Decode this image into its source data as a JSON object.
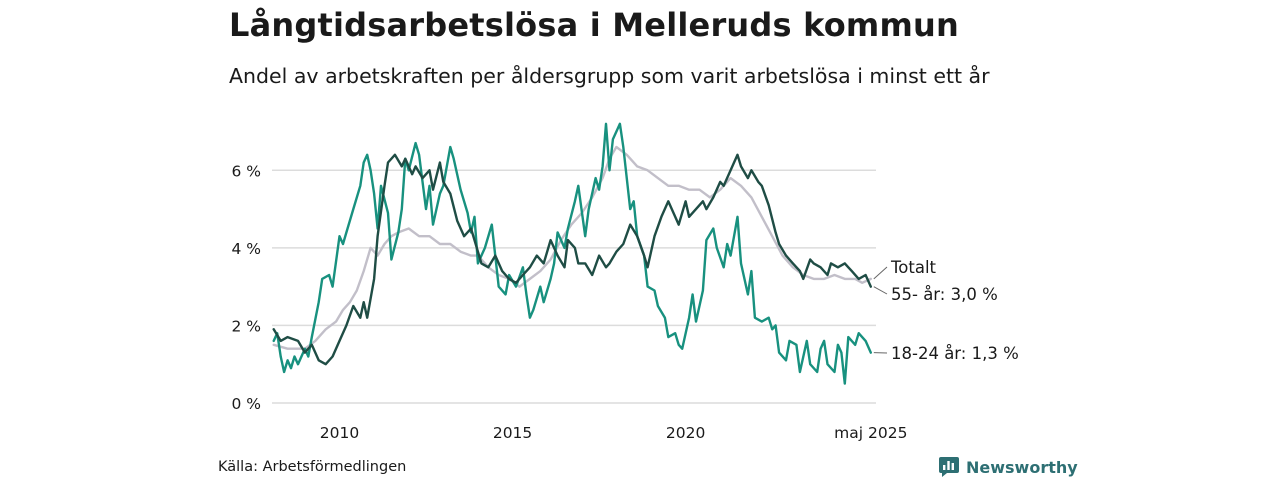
{
  "header": {
    "title": "Långtidsarbetslösa i Melleruds kommun",
    "subtitle": "Andel av arbetskraften per åldersgrupp som varit arbetslösa i minst ett år"
  },
  "footer": {
    "source": "Källa: Arbetsförmedlingen",
    "brand": "Newsworthy"
  },
  "colors": {
    "total": "#c2bfc9",
    "age55": "#1f4d45",
    "age1824": "#18917f",
    "grid": "#dcdcdc",
    "brand": "#2d6f73"
  },
  "chart_data": {
    "type": "line",
    "title": "Långtidsarbetslösa i Melleruds kommun",
    "subtitle": "Andel av arbetskraften per åldersgrupp som varit arbetslösa i minst ett år",
    "xlim": [
      2008.05,
      2025.5
    ],
    "ylim": [
      0,
      7.4
    ],
    "x_ticks": [
      2010,
      2015,
      2020,
      2025.35
    ],
    "x_tick_labels": [
      "2010",
      "2015",
      "2020",
      "maj 2025"
    ],
    "y_ticks": [
      0,
      2,
      4,
      6
    ],
    "y_tick_labels": [
      "0 %",
      "2 %",
      "4 %",
      "6 %"
    ],
    "grid": "horizontal",
    "end_labels": {
      "total": "Totalt",
      "age55": "55- år: 3,0 %",
      "age1824": "18-24 år: 1,3 %"
    },
    "series": [
      {
        "key": "total",
        "name": "Totalt",
        "points": [
          [
            2008.1,
            1.5
          ],
          [
            2008.5,
            1.4
          ],
          [
            2009.0,
            1.4
          ],
          [
            2009.3,
            1.6
          ],
          [
            2009.6,
            1.9
          ],
          [
            2009.9,
            2.1
          ],
          [
            2010.1,
            2.4
          ],
          [
            2010.3,
            2.6
          ],
          [
            2010.5,
            2.9
          ],
          [
            2010.7,
            3.4
          ],
          [
            2010.9,
            4.0
          ],
          [
            2011.1,
            3.8
          ],
          [
            2011.3,
            4.1
          ],
          [
            2011.5,
            4.3
          ],
          [
            2011.7,
            4.4
          ],
          [
            2012.0,
            4.5
          ],
          [
            2012.3,
            4.3
          ],
          [
            2012.6,
            4.3
          ],
          [
            2012.9,
            4.1
          ],
          [
            2013.2,
            4.1
          ],
          [
            2013.5,
            3.9
          ],
          [
            2013.8,
            3.8
          ],
          [
            2014.0,
            3.8
          ],
          [
            2014.3,
            3.5
          ],
          [
            2014.6,
            3.3
          ],
          [
            2014.9,
            3.2
          ],
          [
            2015.2,
            3.0
          ],
          [
            2015.5,
            3.2
          ],
          [
            2015.8,
            3.4
          ],
          [
            2016.1,
            3.7
          ],
          [
            2016.4,
            4.2
          ],
          [
            2016.7,
            4.6
          ],
          [
            2017.0,
            4.9
          ],
          [
            2017.3,
            5.3
          ],
          [
            2017.6,
            5.8
          ],
          [
            2017.8,
            6.3
          ],
          [
            2018.0,
            6.6
          ],
          [
            2018.3,
            6.4
          ],
          [
            2018.6,
            6.1
          ],
          [
            2018.9,
            6.0
          ],
          [
            2019.2,
            5.8
          ],
          [
            2019.5,
            5.6
          ],
          [
            2019.8,
            5.6
          ],
          [
            2020.1,
            5.5
          ],
          [
            2020.4,
            5.5
          ],
          [
            2020.7,
            5.3
          ],
          [
            2021.0,
            5.5
          ],
          [
            2021.3,
            5.8
          ],
          [
            2021.6,
            5.6
          ],
          [
            2021.9,
            5.3
          ],
          [
            2022.2,
            4.8
          ],
          [
            2022.5,
            4.3
          ],
          [
            2022.8,
            3.8
          ],
          [
            2023.1,
            3.5
          ],
          [
            2023.4,
            3.3
          ],
          [
            2023.7,
            3.2
          ],
          [
            2024.0,
            3.2
          ],
          [
            2024.3,
            3.3
          ],
          [
            2024.6,
            3.2
          ],
          [
            2024.9,
            3.2
          ],
          [
            2025.1,
            3.1
          ],
          [
            2025.35,
            3.2
          ]
        ]
      },
      {
        "key": "age55",
        "name": "55- år",
        "points": [
          [
            2008.1,
            1.9
          ],
          [
            2008.3,
            1.6
          ],
          [
            2008.5,
            1.7
          ],
          [
            2008.8,
            1.6
          ],
          [
            2009.0,
            1.3
          ],
          [
            2009.2,
            1.5
          ],
          [
            2009.4,
            1.1
          ],
          [
            2009.6,
            1.0
          ],
          [
            2009.8,
            1.2
          ],
          [
            2010.0,
            1.6
          ],
          [
            2010.2,
            2.0
          ],
          [
            2010.4,
            2.5
          ],
          [
            2010.6,
            2.2
          ],
          [
            2010.7,
            2.6
          ],
          [
            2010.8,
            2.2
          ],
          [
            2011.0,
            3.2
          ],
          [
            2011.1,
            4.3
          ],
          [
            2011.3,
            5.6
          ],
          [
            2011.4,
            6.2
          ],
          [
            2011.6,
            6.4
          ],
          [
            2011.8,
            6.1
          ],
          [
            2011.9,
            6.3
          ],
          [
            2012.1,
            5.9
          ],
          [
            2012.2,
            6.1
          ],
          [
            2012.4,
            5.8
          ],
          [
            2012.6,
            6.0
          ],
          [
            2012.7,
            5.5
          ],
          [
            2012.9,
            6.2
          ],
          [
            2013.0,
            5.7
          ],
          [
            2013.2,
            5.4
          ],
          [
            2013.4,
            4.7
          ],
          [
            2013.6,
            4.3
          ],
          [
            2013.8,
            4.5
          ],
          [
            2013.9,
            4.2
          ],
          [
            2014.1,
            3.6
          ],
          [
            2014.3,
            3.5
          ],
          [
            2014.5,
            3.8
          ],
          [
            2014.7,
            3.4
          ],
          [
            2014.9,
            3.2
          ],
          [
            2015.1,
            3.1
          ],
          [
            2015.3,
            3.3
          ],
          [
            2015.5,
            3.5
          ],
          [
            2015.7,
            3.8
          ],
          [
            2015.9,
            3.6
          ],
          [
            2016.1,
            4.2
          ],
          [
            2016.3,
            3.8
          ],
          [
            2016.5,
            3.5
          ],
          [
            2016.6,
            4.2
          ],
          [
            2016.8,
            4.0
          ],
          [
            2016.9,
            3.6
          ],
          [
            2017.1,
            3.6
          ],
          [
            2017.3,
            3.3
          ],
          [
            2017.5,
            3.8
          ],
          [
            2017.7,
            3.5
          ],
          [
            2017.8,
            3.6
          ],
          [
            2018.0,
            3.9
          ],
          [
            2018.2,
            4.1
          ],
          [
            2018.4,
            4.6
          ],
          [
            2018.6,
            4.3
          ],
          [
            2018.8,
            3.8
          ],
          [
            2018.9,
            3.5
          ],
          [
            2019.1,
            4.3
          ],
          [
            2019.3,
            4.8
          ],
          [
            2019.5,
            5.2
          ],
          [
            2019.6,
            5.0
          ],
          [
            2019.8,
            4.6
          ],
          [
            2020.0,
            5.2
          ],
          [
            2020.1,
            4.8
          ],
          [
            2020.3,
            5.0
          ],
          [
            2020.5,
            5.2
          ],
          [
            2020.6,
            5.0
          ],
          [
            2020.8,
            5.3
          ],
          [
            2021.0,
            5.7
          ],
          [
            2021.1,
            5.6
          ],
          [
            2021.3,
            6.0
          ],
          [
            2021.5,
            6.4
          ],
          [
            2021.6,
            6.1
          ],
          [
            2021.8,
            5.8
          ],
          [
            2021.9,
            6.0
          ],
          [
            2022.1,
            5.7
          ],
          [
            2022.2,
            5.6
          ],
          [
            2022.4,
            5.1
          ],
          [
            2022.6,
            4.4
          ],
          [
            2022.7,
            4.1
          ],
          [
            2022.9,
            3.8
          ],
          [
            2023.1,
            3.6
          ],
          [
            2023.3,
            3.4
          ],
          [
            2023.4,
            3.2
          ],
          [
            2023.6,
            3.7
          ],
          [
            2023.7,
            3.6
          ],
          [
            2023.9,
            3.5
          ],
          [
            2024.1,
            3.3
          ],
          [
            2024.2,
            3.6
          ],
          [
            2024.4,
            3.5
          ],
          [
            2024.6,
            3.6
          ],
          [
            2024.7,
            3.5
          ],
          [
            2024.8,
            3.4
          ],
          [
            2025.0,
            3.2
          ],
          [
            2025.2,
            3.3
          ],
          [
            2025.35,
            3.0
          ]
        ]
      },
      {
        "key": "age1824",
        "name": "18-24 år",
        "points": [
          [
            2008.1,
            1.6
          ],
          [
            2008.2,
            1.8
          ],
          [
            2008.3,
            1.2
          ],
          [
            2008.4,
            0.8
          ],
          [
            2008.5,
            1.1
          ],
          [
            2008.6,
            0.9
          ],
          [
            2008.7,
            1.2
          ],
          [
            2008.8,
            1.0
          ],
          [
            2009.0,
            1.4
          ],
          [
            2009.1,
            1.2
          ],
          [
            2009.2,
            1.7
          ],
          [
            2009.4,
            2.6
          ],
          [
            2009.5,
            3.2
          ],
          [
            2009.7,
            3.3
          ],
          [
            2009.8,
            3.0
          ],
          [
            2010.0,
            4.3
          ],
          [
            2010.1,
            4.1
          ],
          [
            2010.2,
            4.4
          ],
          [
            2010.4,
            5.0
          ],
          [
            2010.6,
            5.6
          ],
          [
            2010.7,
            6.2
          ],
          [
            2010.8,
            6.4
          ],
          [
            2010.9,
            6.0
          ],
          [
            2011.0,
            5.4
          ],
          [
            2011.1,
            4.5
          ],
          [
            2011.2,
            5.6
          ],
          [
            2011.4,
            4.9
          ],
          [
            2011.5,
            3.7
          ],
          [
            2011.7,
            4.4
          ],
          [
            2011.8,
            5.0
          ],
          [
            2011.9,
            6.3
          ],
          [
            2012.0,
            6.0
          ],
          [
            2012.2,
            6.7
          ],
          [
            2012.3,
            6.4
          ],
          [
            2012.5,
            5.0
          ],
          [
            2012.6,
            5.6
          ],
          [
            2012.7,
            4.6
          ],
          [
            2012.9,
            5.4
          ],
          [
            2013.0,
            5.6
          ],
          [
            2013.2,
            6.6
          ],
          [
            2013.3,
            6.3
          ],
          [
            2013.5,
            5.5
          ],
          [
            2013.7,
            4.9
          ],
          [
            2013.8,
            4.4
          ],
          [
            2013.9,
            4.8
          ],
          [
            2014.0,
            3.6
          ],
          [
            2014.2,
            4.0
          ],
          [
            2014.4,
            4.6
          ],
          [
            2014.6,
            3.0
          ],
          [
            2014.8,
            2.8
          ],
          [
            2014.9,
            3.3
          ],
          [
            2015.1,
            3.0
          ],
          [
            2015.3,
            3.5
          ],
          [
            2015.4,
            2.8
          ],
          [
            2015.5,
            2.2
          ],
          [
            2015.6,
            2.4
          ],
          [
            2015.8,
            3.0
          ],
          [
            2015.9,
            2.6
          ],
          [
            2016.1,
            3.2
          ],
          [
            2016.2,
            3.6
          ],
          [
            2016.3,
            4.4
          ],
          [
            2016.5,
            4.0
          ],
          [
            2016.6,
            4.5
          ],
          [
            2016.8,
            5.2
          ],
          [
            2016.9,
            5.6
          ],
          [
            2017.1,
            4.3
          ],
          [
            2017.2,
            5.0
          ],
          [
            2017.4,
            5.8
          ],
          [
            2017.5,
            5.5
          ],
          [
            2017.6,
            6.1
          ],
          [
            2017.7,
            7.2
          ],
          [
            2017.8,
            6.0
          ],
          [
            2017.9,
            6.8
          ],
          [
            2018.1,
            7.2
          ],
          [
            2018.2,
            6.6
          ],
          [
            2018.4,
            5.0
          ],
          [
            2018.5,
            5.2
          ],
          [
            2018.6,
            4.3
          ],
          [
            2018.8,
            3.8
          ],
          [
            2018.9,
            3.0
          ],
          [
            2019.1,
            2.9
          ],
          [
            2019.2,
            2.5
          ],
          [
            2019.4,
            2.2
          ],
          [
            2019.5,
            1.7
          ],
          [
            2019.7,
            1.8
          ],
          [
            2019.8,
            1.5
          ],
          [
            2019.9,
            1.4
          ],
          [
            2020.1,
            2.2
          ],
          [
            2020.2,
            2.8
          ],
          [
            2020.3,
            2.1
          ],
          [
            2020.5,
            2.9
          ],
          [
            2020.6,
            4.2
          ],
          [
            2020.8,
            4.5
          ],
          [
            2020.9,
            4.0
          ],
          [
            2021.1,
            3.5
          ],
          [
            2021.2,
            4.1
          ],
          [
            2021.3,
            3.8
          ],
          [
            2021.5,
            4.8
          ],
          [
            2021.6,
            3.6
          ],
          [
            2021.8,
            2.8
          ],
          [
            2021.9,
            3.4
          ],
          [
            2022.0,
            2.2
          ],
          [
            2022.2,
            2.1
          ],
          [
            2022.4,
            2.2
          ],
          [
            2022.5,
            1.9
          ],
          [
            2022.6,
            2.0
          ],
          [
            2022.7,
            1.3
          ],
          [
            2022.9,
            1.1
          ],
          [
            2023.0,
            1.6
          ],
          [
            2023.2,
            1.5
          ],
          [
            2023.3,
            0.8
          ],
          [
            2023.5,
            1.6
          ],
          [
            2023.6,
            1.0
          ],
          [
            2023.8,
            0.8
          ],
          [
            2023.9,
            1.4
          ],
          [
            2024.0,
            1.6
          ],
          [
            2024.1,
            1.0
          ],
          [
            2024.3,
            0.8
          ],
          [
            2024.4,
            1.5
          ],
          [
            2024.5,
            1.3
          ],
          [
            2024.6,
            0.5
          ],
          [
            2024.7,
            1.7
          ],
          [
            2024.9,
            1.5
          ],
          [
            2025.0,
            1.8
          ],
          [
            2025.2,
            1.6
          ],
          [
            2025.35,
            1.3
          ]
        ]
      }
    ]
  }
}
